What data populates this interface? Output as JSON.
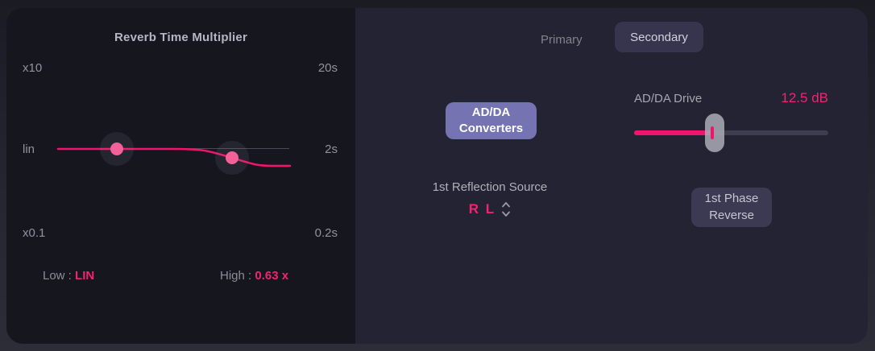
{
  "colors": {
    "accent_pink": "#f32371",
    "curve_pink": "#f2146c",
    "handle_pink": "#f4609a",
    "button_purple": "#7573b2",
    "panel_left_bg": "#16161e",
    "panel_right_bg": "#242334"
  },
  "left_panel": {
    "title": "Reverb Time Multiplier",
    "scale_top": "x10",
    "scale_mid": "lin",
    "scale_bottom": "x0.1",
    "time_top": "20s",
    "time_mid": "2s",
    "time_bottom": "0.2s",
    "low_label": "Low :",
    "low_value": "LIN",
    "high_label": "High :",
    "high_value": "0.63 x"
  },
  "right_panel": {
    "tabs": [
      {
        "label": "Primary",
        "active": false
      },
      {
        "label": "Secondary",
        "active": true
      }
    ],
    "adda_button": {
      "line1": "AD/DA",
      "line2": "Converters"
    },
    "drive": {
      "label": "AD/DA Drive",
      "value": "12.5 dB",
      "fill_pct": 40
    },
    "reflection": {
      "label": "1st Reflection Source",
      "value": "R L"
    },
    "phase_button": {
      "line1": "1st Phase",
      "line2": "Reverse"
    }
  }
}
